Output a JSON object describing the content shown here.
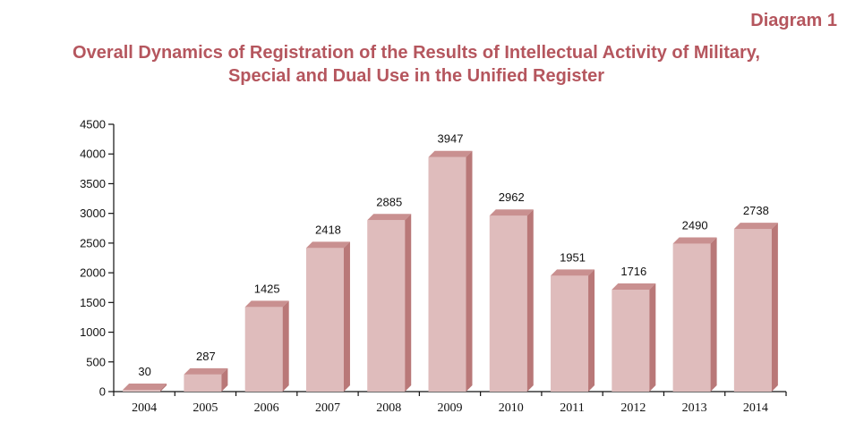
{
  "diagram_label": "Diagram 1",
  "chart_data": {
    "type": "bar",
    "title_line1": "Overall Dynamics of Registration of the Results of Intellectual Activity of Military,",
    "title_line2": "Special and Dual Use in the Unified Register",
    "categories": [
      "2004",
      "2005",
      "2006",
      "2007",
      "2008",
      "2009",
      "2010",
      "2011",
      "2012",
      "2013",
      "2014"
    ],
    "values": [
      30,
      287,
      1425,
      2418,
      2885,
      3947,
      2962,
      1951,
      1716,
      2490,
      2738
    ],
    "ylim": [
      0,
      4500
    ],
    "yticks": [
      0,
      500,
      1000,
      1500,
      2000,
      2500,
      3000,
      3500,
      4000,
      4500
    ],
    "xlabel": "",
    "ylabel": "",
    "grid": false,
    "colors": {
      "bar_front": "#dfbcbc",
      "bar_top": "#c99090",
      "bar_side": "#b97878",
      "title": "#b5565e"
    }
  }
}
